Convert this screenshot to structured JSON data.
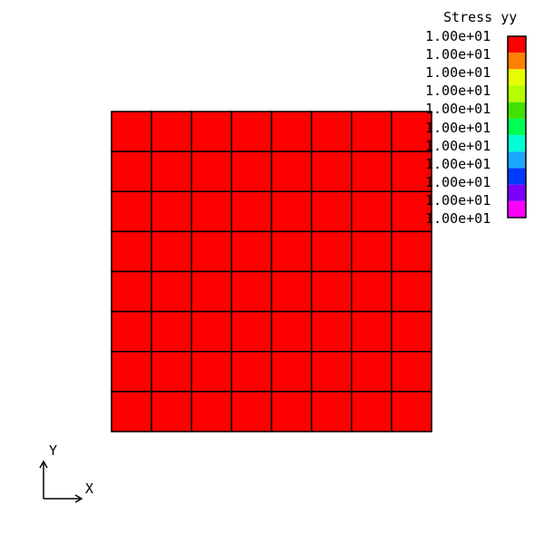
{
  "legend": {
    "title": "Stress yy",
    "labels": [
      "1.00e+01",
      "1.00e+01",
      "1.00e+01",
      "1.00e+01",
      "1.00e+01",
      "1.00e+01",
      "1.00e+01",
      "1.00e+01",
      "1.00e+01",
      "1.00e+01",
      "1.00e+01"
    ],
    "colors": [
      "#ff0000",
      "#ff7f00",
      "#e5ff00",
      "#b3ff00",
      "#40e000",
      "#00ff55",
      "#00ffd5",
      "#1aa8ff",
      "#0039ff",
      "#7a00ff",
      "#ff00ff"
    ]
  },
  "mesh": {
    "rows": 8,
    "cols": 8,
    "fill_color": "#ff0000",
    "edge_color": "#000000"
  },
  "axes": {
    "x_label": "X",
    "y_label": "Y"
  }
}
